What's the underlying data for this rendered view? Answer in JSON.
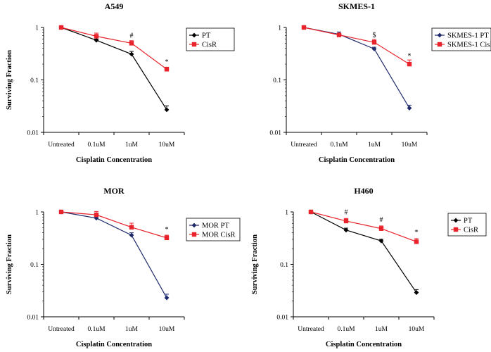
{
  "chart_data": [
    {
      "type": "line",
      "title": "A549",
      "xlabel": "Cisplatin Concentration",
      "ylabel": "Surviving Fraction",
      "yscale": "log",
      "ylim": [
        0.01,
        1
      ],
      "yticks": [
        "1",
        "0.1",
        "0.01"
      ],
      "categories": [
        "Untreated",
        "0.1uM",
        "1uM",
        "10uM"
      ],
      "legend_position": "right",
      "series": [
        {
          "name": "PT",
          "color": "#000000",
          "marker": "diamond",
          "values": [
            1.0,
            0.57,
            0.31,
            0.027
          ],
          "errors": [
            0.02,
            0.03,
            0.04,
            0.005
          ]
        },
        {
          "name": "CisR",
          "color": "#e8232b",
          "marker": "square",
          "values": [
            1.0,
            0.68,
            0.5,
            0.16
          ],
          "errors": [
            0.03,
            0.1,
            0.06,
            0.015
          ]
        }
      ],
      "annotations": [
        {
          "text": "#",
          "category": "1uM",
          "value": 0.64
        },
        {
          "text": "*",
          "category": "10uM",
          "value": 0.2
        }
      ]
    },
    {
      "type": "line",
      "title": "SKMES-1",
      "xlabel": "Cisplatin Concentration",
      "ylabel": "",
      "yscale": "log",
      "ylim": [
        0.01,
        1
      ],
      "yticks": [
        "1",
        "0.1",
        "0.01"
      ],
      "categories": [
        "Untreated",
        "0.1uM",
        "1uM",
        "10uM"
      ],
      "legend_position": "right",
      "series": [
        {
          "name": "SKMES-1 PT",
          "color": "#1f2a6b",
          "marker": "diamond",
          "values": [
            1.0,
            0.74,
            0.39,
            0.029
          ],
          "errors": [
            0.02,
            0.08,
            0.03,
            0.004
          ]
        },
        {
          "name": "SKMES-1 CisR",
          "color": "#e8232b",
          "marker": "square",
          "values": [
            1.0,
            0.72,
            0.52,
            0.2
          ],
          "errors": [
            0.02,
            0.06,
            0.07,
            0.04
          ]
        }
      ],
      "annotations": [
        {
          "text": "$",
          "category": "1uM",
          "value": 0.65
        },
        {
          "text": "*",
          "category": "10uM",
          "value": 0.26
        }
      ]
    },
    {
      "type": "line",
      "title": "MOR",
      "xlabel": "Cisplatin Concentration",
      "ylabel": "Surviving Fraction",
      "yscale": "log",
      "ylim": [
        0.01,
        1
      ],
      "yticks": [
        "1",
        "0.1",
        "0.01"
      ],
      "categories": [
        "Untreated",
        "0.1uM",
        "1uM",
        "10uM"
      ],
      "legend_position": "right",
      "series": [
        {
          "name": "MOR PT",
          "color": "#1f2a6b",
          "marker": "diamond",
          "values": [
            1.0,
            0.76,
            0.36,
            0.023
          ],
          "errors": [
            0.03,
            0.05,
            0.04,
            0.004
          ]
        },
        {
          "name": "MOR CisR",
          "color": "#e8232b",
          "marker": "square",
          "values": [
            1.0,
            0.88,
            0.51,
            0.32
          ],
          "errors": [
            0.03,
            0.14,
            0.1,
            0.04
          ]
        }
      ],
      "annotations": [
        {
          "text": "*",
          "category": "10uM",
          "value": 0.42
        }
      ]
    },
    {
      "type": "line",
      "title": "H460",
      "xlabel": "Cisplatin Concentration",
      "ylabel": "Surviving Fraction",
      "yscale": "log",
      "ylim": [
        0.01,
        1
      ],
      "yticks": [
        "1",
        "0.1",
        "0.01"
      ],
      "categories": [
        "Untreated",
        "0.1uM",
        "1uM",
        "10uM"
      ],
      "legend_position": "right",
      "series": [
        {
          "name": "PT",
          "color": "#000000",
          "marker": "diamond",
          "values": [
            1.0,
            0.45,
            0.28,
            0.029
          ],
          "errors": [
            0.02,
            0.04,
            0.02,
            0.004
          ]
        },
        {
          "name": "CisR",
          "color": "#e8232b",
          "marker": "square",
          "values": [
            1.0,
            0.67,
            0.48,
            0.27
          ],
          "errors": [
            0.02,
            0.08,
            0.06,
            0.04
          ]
        }
      ],
      "annotations": [
        {
          "text": "#",
          "category": "0.1uM",
          "value": 0.9
        },
        {
          "text": "#",
          "category": "1uM",
          "value": 0.65
        },
        {
          "text": "*",
          "category": "10uM",
          "value": 0.37
        }
      ]
    }
  ]
}
